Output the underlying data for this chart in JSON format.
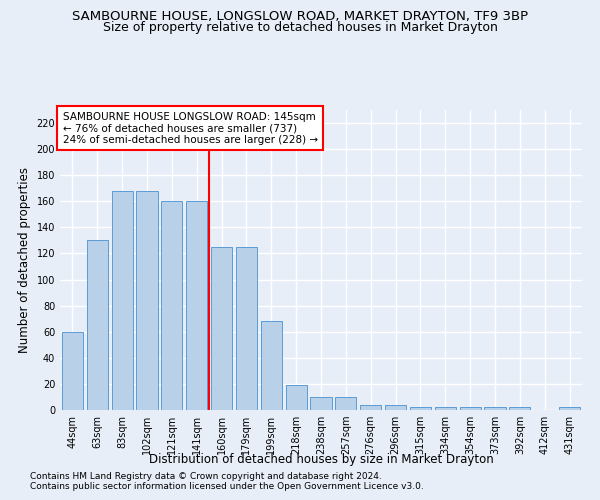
{
  "title": "SAMBOURNE HOUSE, LONGSLOW ROAD, MARKET DRAYTON, TF9 3BP",
  "subtitle": "Size of property relative to detached houses in Market Drayton",
  "xlabel": "Distribution of detached houses by size in Market Drayton",
  "ylabel": "Number of detached properties",
  "categories": [
    "44sqm",
    "63sqm",
    "83sqm",
    "102sqm",
    "121sqm",
    "141sqm",
    "160sqm",
    "179sqm",
    "199sqm",
    "218sqm",
    "238sqm",
    "257sqm",
    "276sqm",
    "296sqm",
    "315sqm",
    "334sqm",
    "354sqm",
    "373sqm",
    "392sqm",
    "412sqm",
    "431sqm"
  ],
  "values": [
    60,
    130,
    168,
    168,
    160,
    160,
    125,
    125,
    68,
    19,
    10,
    10,
    4,
    4,
    2,
    2,
    2,
    2,
    2,
    0,
    2
  ],
  "bar_color": "#b8d0e8",
  "bar_edge_color": "#5b9bd5",
  "redline_x": 5.5,
  "annotation_text": "SAMBOURNE HOUSE LONGSLOW ROAD: 145sqm\n← 76% of detached houses are smaller (737)\n24% of semi-detached houses are larger (228) →",
  "footnote1": "Contains HM Land Registry data © Crown copyright and database right 2024.",
  "footnote2": "Contains public sector information licensed under the Open Government Licence v3.0.",
  "ylim": [
    0,
    230
  ],
  "bg_color": "#e8eef8",
  "grid_color": "#ffffff",
  "title_fontsize": 9.5,
  "subtitle_fontsize": 9,
  "axis_label_fontsize": 8.5,
  "tick_fontsize": 7,
  "annotation_fontsize": 7.5,
  "footnote_fontsize": 6.5,
  "yticks": [
    0,
    20,
    40,
    60,
    80,
    100,
    120,
    140,
    160,
    180,
    200,
    220
  ]
}
